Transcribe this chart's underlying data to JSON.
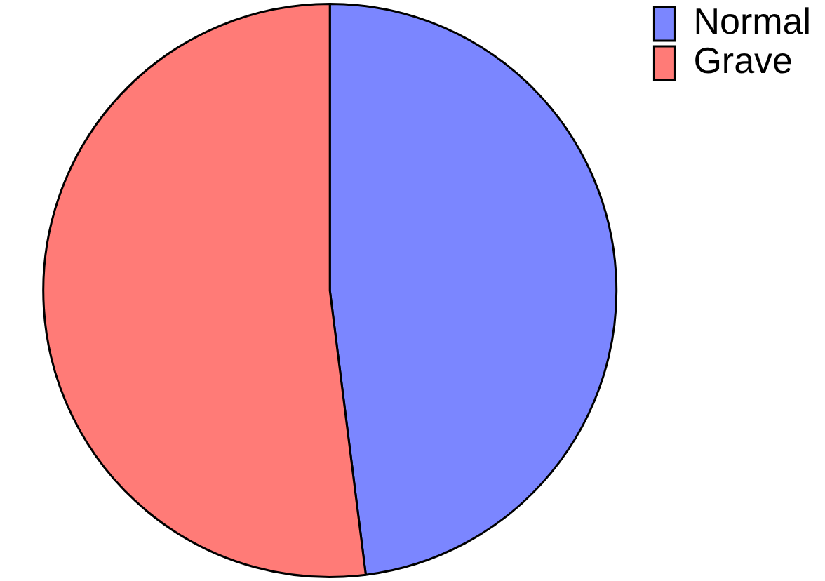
{
  "chart_data": {
    "type": "pie",
    "categories": [
      "Normal",
      "Grave"
    ],
    "values": [
      48,
      52
    ],
    "colors": [
      "#7b86ff",
      "#ff7b77"
    ],
    "legend": "top right"
  }
}
